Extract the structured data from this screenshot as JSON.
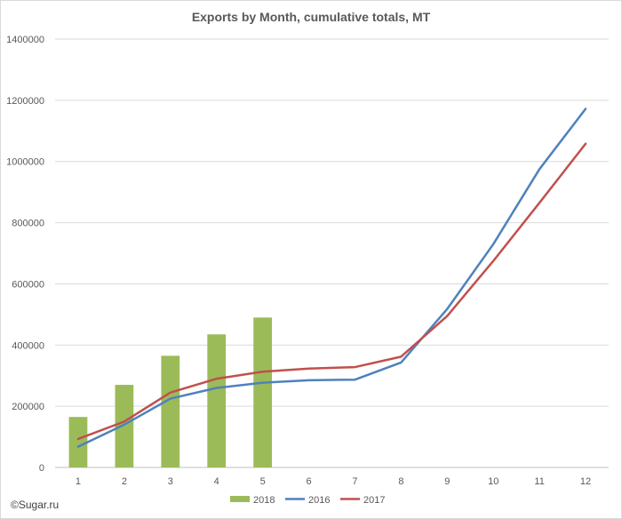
{
  "chart_data": {
    "type": "bar+line",
    "title": "Exports by Month, cumulative totals, MT",
    "categories": [
      "1",
      "2",
      "3",
      "4",
      "5",
      "6",
      "7",
      "8",
      "9",
      "10",
      "11",
      "12"
    ],
    "ylim": [
      0,
      1400000
    ],
    "yticks": [
      0,
      200000,
      400000,
      600000,
      800000,
      1000000,
      1200000,
      1400000
    ],
    "ytick_labels": [
      "0",
      "200000",
      "400000",
      "600000",
      "800000",
      "1000000",
      "1200000",
      "1400000"
    ],
    "grid": "horizontal",
    "legend_position": "bottom",
    "series": [
      {
        "name": "2018",
        "kind": "bar",
        "color": "#9bbb59",
        "values": [
          165000,
          270000,
          365000,
          435000,
          490000,
          null,
          null,
          null,
          null,
          null,
          null,
          null
        ]
      },
      {
        "name": "2016",
        "kind": "line",
        "color": "#4f81bd",
        "values": [
          68000,
          140000,
          225000,
          260000,
          277000,
          285000,
          287000,
          343000,
          518000,
          730000,
          975000,
          1172000
        ]
      },
      {
        "name": "2017",
        "kind": "line",
        "color": "#c0504d",
        "values": [
          93000,
          150000,
          245000,
          290000,
          313000,
          323000,
          328000,
          362000,
          495000,
          675000,
          865000,
          1058000
        ]
      }
    ]
  },
  "credit": "©Sugar.ru"
}
